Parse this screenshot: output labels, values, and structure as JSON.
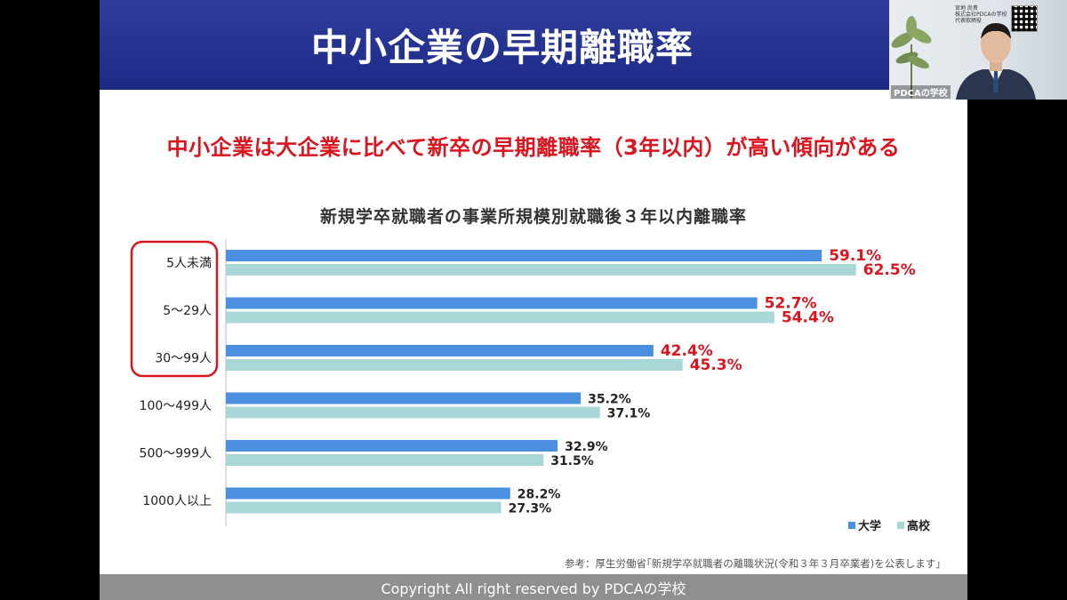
{
  "slide": {
    "title": "中小企業の早期離職率",
    "subtitle": "中小企業は大企業に比べて新卒の早期離職率（3年以内）が高い傾向がある",
    "source": "参考：厚生労働省｢新規学卒就職者の離職状況(令和３年３月卒業者)を公表します｣",
    "footer": "Copyright All right reserved by PDCAの学校"
  },
  "camera": {
    "label": "PDCAの学校",
    "name_line1": "宮地 尚貴",
    "name_line2": "株式会社PDCAの学校",
    "name_line3": "代表取締役"
  },
  "colors": {
    "accent_red": "#d9151f",
    "bar_university": "#4a8fe0",
    "bar_highschool": "#a9d6d7",
    "title_bg": "#2a3896"
  },
  "chart_data": {
    "type": "bar",
    "orientation": "horizontal",
    "title": "新規学卒就職者の事業所規模別就職後３年以内離職率",
    "categories": [
      "5人未満",
      "5～29人",
      "30～99人",
      "100～499人",
      "500～999人",
      "1000人以上"
    ],
    "series": [
      {
        "name": "大学",
        "values": [
          59.1,
          52.7,
          42.4,
          35.2,
          32.9,
          28.2
        ]
      },
      {
        "name": "高校",
        "values": [
          62.5,
          54.4,
          45.3,
          37.1,
          31.5,
          27.3
        ]
      }
    ],
    "value_labels": [
      [
        "59.1%",
        "52.7%",
        "42.4%",
        "35.2%",
        "32.9%",
        "28.2%"
      ],
      [
        "62.5%",
        "54.4%",
        "45.3%",
        "37.1%",
        "31.5%",
        "27.3%"
      ]
    ],
    "highlighted_categories": [
      0,
      1,
      2
    ],
    "legend_position": "bottom-right",
    "xlim": [
      0,
      70
    ],
    "grid": false
  }
}
